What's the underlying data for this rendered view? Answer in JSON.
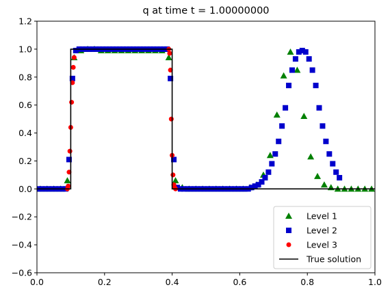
{
  "chart_data": {
    "type": "line",
    "title": "q at time t =     1.00000000",
    "xlabel": "",
    "ylabel": "",
    "xlim": [
      0.0,
      1.0
    ],
    "ylim": [
      -0.6,
      1.2
    ],
    "xticks": [
      "0.0",
      "0.2",
      "0.4",
      "0.6",
      "0.8",
      "1.0"
    ],
    "yticks": [
      "−0.6",
      "−0.4",
      "−0.2",
      "0.0",
      "0.2",
      "0.4",
      "0.6",
      "0.8",
      "1.0",
      "1.2"
    ],
    "grid": false,
    "legend_position": "bottom-right",
    "series": [
      {
        "name": "Level 1",
        "marker": "triangle",
        "color": "#008000",
        "x": [
          0.01,
          0.03,
          0.05,
          0.07,
          0.09,
          0.11,
          0.13,
          0.15,
          0.17,
          0.19,
          0.21,
          0.23,
          0.25,
          0.27,
          0.29,
          0.31,
          0.33,
          0.35,
          0.37,
          0.39,
          0.41,
          0.43,
          0.45,
          0.47,
          0.49,
          0.51,
          0.53,
          0.55,
          0.57,
          0.59,
          0.61,
          0.63,
          0.65,
          0.67,
          0.69,
          0.71,
          0.73,
          0.75,
          0.77,
          0.79,
          0.81,
          0.83,
          0.85,
          0.87,
          0.89,
          0.91,
          0.93,
          0.95,
          0.97,
          0.99
        ],
        "y": [
          0.0,
          0.0,
          0.0,
          0.0,
          0.06,
          0.94,
          0.99,
          1.0,
          1.0,
          0.99,
          0.99,
          0.99,
          0.99,
          0.99,
          0.99,
          0.99,
          0.99,
          0.99,
          0.99,
          0.94,
          0.06,
          0.01,
          0.0,
          0.0,
          0.0,
          0.0,
          0.0,
          0.0,
          0.0,
          0.0,
          0.0,
          0.01,
          0.03,
          0.1,
          0.24,
          0.53,
          0.81,
          0.98,
          0.85,
          0.52,
          0.23,
          0.09,
          0.03,
          0.01,
          0.0,
          0.0,
          0.0,
          0.0,
          0.0,
          0.0
        ]
      },
      {
        "name": "Level 2",
        "marker": "square",
        "color": "#0000cc",
        "x": [
          0.005,
          0.015,
          0.025,
          0.035,
          0.045,
          0.055,
          0.065,
          0.075,
          0.085,
          0.095,
          0.105,
          0.115,
          0.125,
          0.135,
          0.145,
          0.155,
          0.165,
          0.175,
          0.185,
          0.195,
          0.205,
          0.215,
          0.225,
          0.235,
          0.245,
          0.255,
          0.265,
          0.275,
          0.285,
          0.295,
          0.305,
          0.315,
          0.325,
          0.335,
          0.345,
          0.355,
          0.365,
          0.375,
          0.385,
          0.395,
          0.405,
          0.415,
          0.425,
          0.435,
          0.445,
          0.455,
          0.465,
          0.475,
          0.485,
          0.495,
          0.505,
          0.515,
          0.525,
          0.535,
          0.545,
          0.555,
          0.565,
          0.575,
          0.585,
          0.595,
          0.605,
          0.615,
          0.625,
          0.635,
          0.645,
          0.655,
          0.665,
          0.675,
          0.685,
          0.695,
          0.705,
          0.715,
          0.725,
          0.735,
          0.745,
          0.755,
          0.765,
          0.775,
          0.785,
          0.795,
          0.805,
          0.815,
          0.825,
          0.835,
          0.845,
          0.855,
          0.865,
          0.875,
          0.885,
          0.895
        ],
        "y": [
          0.0,
          0.0,
          0.0,
          0.0,
          0.0,
          0.0,
          0.0,
          0.0,
          0.0,
          0.21,
          0.79,
          0.99,
          1.0,
          1.0,
          1.0,
          1.0,
          1.0,
          1.0,
          1.0,
          1.0,
          1.0,
          1.0,
          1.0,
          1.0,
          1.0,
          1.0,
          1.0,
          1.0,
          1.0,
          1.0,
          1.0,
          1.0,
          1.0,
          1.0,
          1.0,
          1.0,
          1.0,
          1.0,
          1.0,
          0.79,
          0.21,
          0.01,
          0.0,
          0.0,
          0.0,
          0.0,
          0.0,
          0.0,
          0.0,
          0.0,
          0.0,
          0.0,
          0.0,
          0.0,
          0.0,
          0.0,
          0.0,
          0.0,
          0.0,
          0.0,
          0.0,
          0.0,
          0.0,
          0.01,
          0.02,
          0.03,
          0.05,
          0.08,
          0.12,
          0.18,
          0.25,
          0.34,
          0.45,
          0.58,
          0.74,
          0.85,
          0.93,
          0.98,
          0.99,
          0.98,
          0.93,
          0.85,
          0.74,
          0.58,
          0.45,
          0.34,
          0.25,
          0.18,
          0.12,
          0.08
        ]
      },
      {
        "name": "Level 3",
        "marker": "circle",
        "color": "#ff0000",
        "x": [
          0.09,
          0.0925,
          0.095,
          0.0975,
          0.1,
          0.1025,
          0.105,
          0.1075,
          0.11,
          0.39,
          0.3925,
          0.395,
          0.3975,
          0.4,
          0.4025,
          0.405,
          0.4075,
          0.41
        ],
        "y": [
          0.0,
          0.02,
          0.12,
          0.27,
          0.44,
          0.62,
          0.76,
          0.87,
          0.94,
          1.0,
          0.97,
          0.85,
          0.5,
          0.24,
          0.1,
          0.03,
          0.01,
          0.0
        ]
      },
      {
        "name": "True solution",
        "marker": "line",
        "color": "#000000",
        "x": [
          0.0,
          0.1,
          0.1,
          0.4,
          0.4,
          1.0
        ],
        "y": [
          0.0,
          0.0,
          1.0,
          1.0,
          0.0,
          0.0
        ]
      }
    ]
  }
}
